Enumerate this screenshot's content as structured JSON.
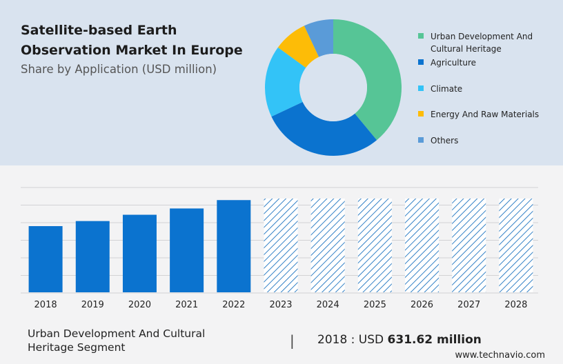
{
  "header": {
    "title": "Satellite-based Earth Observation Market In Europe",
    "subtitle": "Share by Application (USD million)"
  },
  "chart_data": [
    {
      "type": "pie",
      "variant": "donut",
      "title": "",
      "categories": [
        "Urban Development And Cultural Heritage",
        "Agriculture",
        "Climate",
        "Energy And Raw Materials",
        "Others"
      ],
      "values": [
        39,
        29,
        17,
        8,
        7
      ],
      "colors": [
        "#56c596",
        "#0b73cf",
        "#33c3f7",
        "#fdbc07",
        "#5a9bd8"
      ],
      "legend_placement": "right"
    },
    {
      "type": "bar",
      "title": "",
      "categories": [
        "2018",
        "2019",
        "2020",
        "2021",
        "2022",
        "2023",
        "2024",
        "2025",
        "2026",
        "2027",
        "2028"
      ],
      "values": [
        631.62,
        680,
        740,
        800,
        880,
        null,
        null,
        null,
        null,
        null,
        null
      ],
      "forecast_categories": [
        "2023",
        "2024",
        "2025",
        "2026",
        "2027",
        "2028"
      ],
      "bar_color": "#0b73cf",
      "forecast_color": "#1d74c0",
      "grid": true,
      "xlabel": "",
      "ylabel": ""
    }
  ],
  "footer": {
    "segment_label": "Urban Development And Cultural Heritage Segment",
    "divider": "|",
    "year_prefix": "2018 : USD ",
    "value": "631.62 million",
    "source": "www.technavio.com"
  }
}
